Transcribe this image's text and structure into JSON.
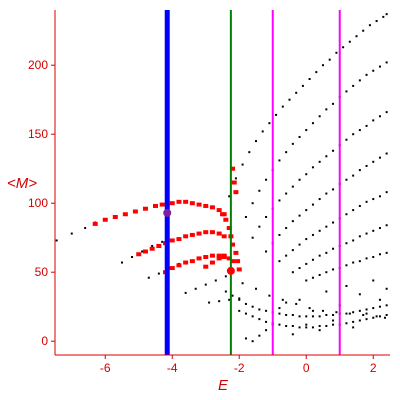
{
  "chart_data": {
    "type": "scatter",
    "title": "",
    "xlabel": "E",
    "ylabel": "<M>",
    "xlim": [
      -7.5,
      2.5
    ],
    "ylim": [
      -10,
      240
    ],
    "x_ticks": [
      -6,
      -4,
      -2,
      0,
      2
    ],
    "y_ticks": [
      0,
      50,
      100,
      150,
      200
    ],
    "x_tick_labels": [
      "-6",
      "-4",
      "-2",
      "0",
      "2"
    ],
    "y_tick_labels": [
      "0",
      "50",
      "100",
      "150",
      "200"
    ],
    "grid": false,
    "legend": "none",
    "colors": {
      "axis": "#d40000",
      "points_black": "#000000",
      "points_red": "#ff0000",
      "line_blue": "#0000ff",
      "line_green": "#008000",
      "line_magenta": "#ff00ff"
    },
    "vertical_lines": [
      {
        "x": -4.15,
        "color": "#0000ff"
      },
      {
        "x": -2.25,
        "color": "#008000"
      },
      {
        "x": -1.0,
        "color": "#ff00ff"
      },
      {
        "x": 1.0,
        "color": "#ff00ff"
      }
    ],
    "black_branches": [
      {
        "x": [
          -7.45,
          -7.0,
          -6.6,
          -6.3
        ],
        "y": [
          73,
          78,
          82,
          86
        ]
      },
      {
        "x": [
          -5.5,
          -5.2,
          -4.9,
          -4.6,
          -4.3
        ],
        "y": [
          57,
          61,
          65,
          69,
          72
        ]
      },
      {
        "x": [
          -4.7,
          -4.4,
          -4.1,
          -3.8
        ],
        "y": [
          46,
          49,
          53,
          56
        ]
      },
      {
        "x": [
          -3.6,
          -3.3,
          -3.0,
          -2.7,
          -2.4
        ],
        "y": [
          35,
          38,
          41,
          44,
          47
        ]
      },
      {
        "x": [
          -2.9,
          -2.6,
          -2.3,
          -2.0
        ],
        "y": [
          28,
          29,
          30,
          31
        ]
      },
      {
        "x": [
          -2.3,
          -2.1,
          -1.9,
          -1.7,
          -1.5,
          -1.3,
          -1.1,
          -0.9,
          -0.7,
          -0.5,
          -0.3,
          -0.1,
          0.1,
          0.3,
          0.5,
          0.7,
          0.9,
          1.1,
          1.3,
          1.5,
          1.7,
          1.9,
          2.1,
          2.3,
          2.4
        ],
        "y": [
          105,
          118,
          128,
          137,
          145,
          152,
          158,
          164,
          170,
          175,
          180,
          185,
          190,
          195,
          200,
          204,
          209,
          213,
          217,
          221,
          225,
          229,
          232,
          235,
          237
        ]
      },
      {
        "x": [
          -1.8,
          -1.6,
          -1.4,
          -1.2,
          -1.0,
          -0.8,
          -0.6,
          -0.4,
          -0.2,
          0.0,
          0.2,
          0.4,
          0.6,
          0.8,
          1.0,
          1.2,
          1.4,
          1.6,
          1.8,
          2.0,
          2.2,
          2.4
        ],
        "y": [
          90,
          100,
          109,
          117,
          124,
          131,
          137,
          143,
          148,
          153,
          158,
          163,
          168,
          172,
          177,
          181,
          185,
          189,
          193,
          196,
          199,
          202
        ]
      },
      {
        "x": [
          -1.6,
          -1.4,
          -1.2,
          -1.0,
          -0.8,
          -0.6,
          -0.4,
          -0.2,
          0.0,
          0.2,
          0.4,
          0.6,
          0.8,
          1.0,
          1.2,
          1.4,
          1.6,
          1.8,
          2.0,
          2.2,
          2.4
        ],
        "y": [
          75,
          83,
          90,
          96,
          102,
          107,
          112,
          117,
          121,
          126,
          130,
          134,
          138,
          142,
          146,
          150,
          153,
          156,
          160,
          163,
          166
        ]
      },
      {
        "x": [
          -1.2,
          -1.0,
          -0.8,
          -0.6,
          -0.4,
          -0.2,
          0.0,
          0.2,
          0.4,
          0.6,
          0.8,
          1.0,
          1.2,
          1.4,
          1.6,
          1.8,
          2.0,
          2.2,
          2.4
        ],
        "y": [
          65,
          71,
          77,
          82,
          87,
          91,
          95,
          99,
          103,
          107,
          110,
          114,
          117,
          120,
          124,
          127,
          130,
          133,
          136
        ]
      },
      {
        "x": [
          -0.8,
          -0.6,
          -0.4,
          -0.2,
          0.0,
          0.2,
          0.4,
          0.6,
          0.8,
          1.0,
          1.2,
          1.4,
          1.6,
          1.8,
          2.0,
          2.2,
          2.4
        ],
        "y": [
          58,
          62,
          66,
          70,
          74,
          77,
          80,
          83,
          86,
          89,
          92,
          95,
          98,
          101,
          103,
          105,
          108
        ]
      },
      {
        "x": [
          -0.4,
          -0.2,
          0.0,
          0.2,
          0.4,
          0.6,
          0.8,
          1.0,
          1.2,
          1.4,
          1.6,
          1.8,
          2.0,
          2.2,
          2.4
        ],
        "y": [
          50,
          53,
          56,
          59,
          62,
          64,
          67,
          69,
          71,
          73,
          76,
          78,
          80,
          82,
          84
        ]
      },
      {
        "x": [
          0.0,
          0.2,
          0.4,
          0.6,
          0.8,
          1.0,
          1.2,
          1.4,
          1.6,
          1.8,
          2.0,
          2.2,
          2.4
        ],
        "y": [
          44,
          46,
          48,
          50,
          52,
          53,
          55,
          57,
          58,
          60,
          61,
          63,
          64
        ]
      },
      {
        "x": [
          -2.4,
          -2.2,
          -2.0,
          -1.8,
          -1.6,
          -1.4,
          -1.2,
          -1.0,
          -0.8,
          -0.6,
          -0.4,
          -0.2,
          0.0,
          0.2,
          0.4,
          0.6,
          0.8,
          1.0,
          1.2,
          1.4,
          1.6,
          1.8,
          2.0,
          2.2,
          2.4
        ],
        "y": [
          36,
          33,
          30,
          27,
          25,
          23,
          22,
          21,
          20,
          19,
          19,
          18,
          18,
          18,
          18,
          19,
          19,
          20,
          20,
          21,
          22,
          23,
          24,
          25,
          26
        ]
      },
      {
        "x": [
          -2.0,
          -1.8,
          -1.6,
          -1.4,
          -1.2,
          -1.0,
          -0.8,
          -0.6,
          -0.4,
          -0.2,
          0.0,
          0.2,
          0.4,
          0.6,
          0.8,
          1.0,
          1.2,
          1.4,
          1.6,
          1.8,
          2.0,
          2.2,
          2.4
        ],
        "y": [
          22,
          20,
          18,
          16,
          14,
          13,
          12,
          11,
          11,
          10,
          10,
          10,
          11,
          11,
          12,
          12,
          13,
          14,
          15,
          16,
          17,
          18,
          19
        ]
      },
      {
        "x": [
          -1.8,
          -1.6,
          -1.4,
          -1.2,
          -1.0,
          -0.8,
          -0.6,
          -0.4,
          -0.2,
          0.0,
          0.2,
          0.4,
          0.6,
          0.8,
          1.0,
          1.2,
          1.4,
          1.6,
          1.8,
          2.0,
          2.2,
          2.4
        ],
        "y": [
          2,
          0,
          4,
          8,
          12,
          24,
          28,
          5,
          30,
          12,
          22,
          8,
          36,
          15,
          26,
          40,
          10,
          34,
          20,
          44,
          30,
          38
        ]
      },
      {
        "x": [
          -1.9,
          -1.5,
          -1.1,
          -0.7,
          -0.3,
          0.1,
          0.5,
          0.9,
          1.3,
          1.7,
          2.1,
          2.35
        ],
        "y": [
          42,
          38,
          33,
          30,
          27,
          24,
          22,
          21,
          20,
          19,
          18,
          17
        ]
      }
    ],
    "red_branches": [
      {
        "x": [
          -6.3,
          -6.0,
          -5.7,
          -5.4,
          -5.1,
          -4.8,
          -4.5,
          -4.3,
          -4.15,
          -4.0,
          -3.8,
          -3.6,
          -3.4,
          -3.2,
          -3.0,
          -2.8,
          -2.6,
          -2.45
        ],
        "y": [
          85,
          88,
          90,
          92,
          94,
          96,
          98,
          99,
          99,
          100,
          101,
          101,
          100,
          99,
          98,
          97,
          95,
          92
        ]
      },
      {
        "x": [
          -5.0,
          -4.8,
          -4.6,
          -4.4,
          -4.2,
          -4.0,
          -3.8,
          -3.6,
          -3.4,
          -3.2,
          -3.0,
          -2.8,
          -2.6,
          -2.45
        ],
        "y": [
          63,
          65,
          67,
          69,
          71,
          73,
          74,
          76,
          77,
          78,
          79,
          79,
          78,
          76
        ]
      },
      {
        "x": [
          -4.2,
          -4.0,
          -3.8,
          -3.6,
          -3.4,
          -3.2,
          -3.0,
          -2.8,
          -2.6,
          -2.45
        ],
        "y": [
          50,
          53,
          55,
          57,
          58,
          60,
          61,
          62,
          62,
          61
        ]
      },
      {
        "x": [
          -3.0,
          -2.8,
          -2.6,
          -2.45,
          -2.3,
          -2.2
        ],
        "y": [
          54,
          57,
          60,
          62,
          60,
          58
        ]
      },
      {
        "x": [
          -2.5,
          -2.4,
          -2.3,
          -2.25,
          -2.2,
          -2.1,
          -2.05,
          -2.0
        ],
        "y": [
          92,
          88,
          82,
          76,
          70,
          64,
          58,
          52
        ]
      },
      {
        "x": [
          -2.2,
          -2.15,
          -2.1
        ],
        "y": [
          125,
          115,
          108
        ]
      }
    ],
    "highlight_points": [
      {
        "x": -4.15,
        "y": 93,
        "color": "#8020a0"
      },
      {
        "x": -2.25,
        "y": 51,
        "color": "#ff0000"
      }
    ]
  }
}
